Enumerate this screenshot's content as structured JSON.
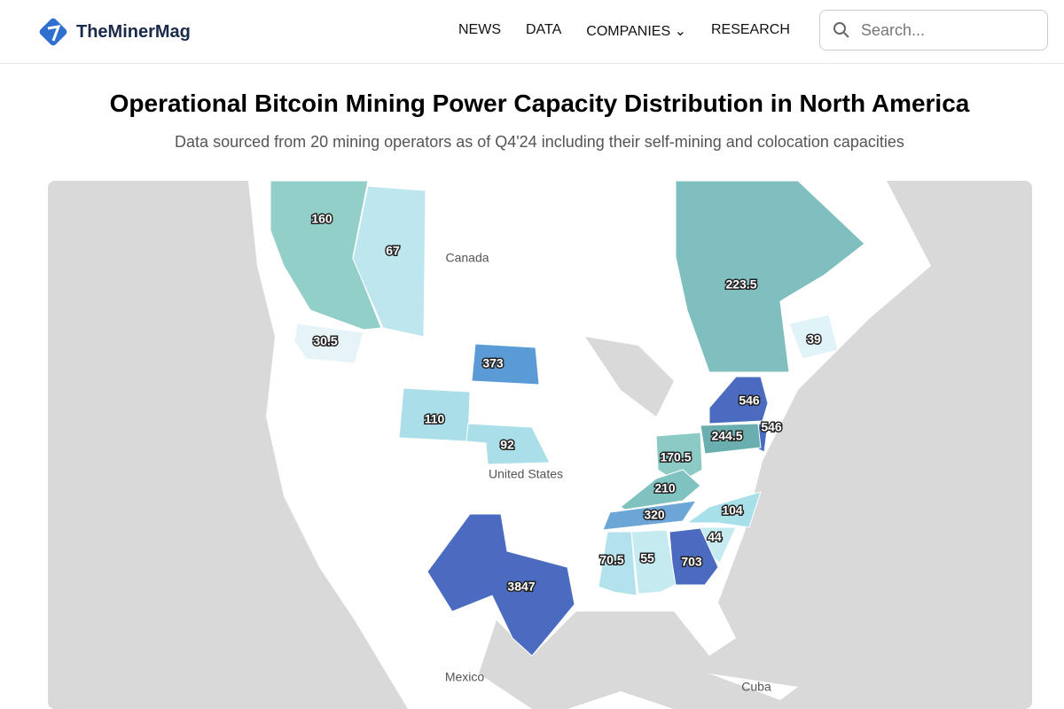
{
  "header": {
    "logo": "TheMinerMag",
    "nav": [
      "NEWS",
      "DATA",
      "COMPANIES",
      "RESEARCH"
    ],
    "search_placeholder": "Search..."
  },
  "title": "Operational Bitcoin Mining Power Capacity Distribution in North America",
  "subtitle": "Data sourced from 20 mining operators as of Q4'24 including their self-mining and colocation capacities",
  "map": {
    "place_labels": [
      "Canada",
      "United States",
      "Mexico",
      "Cuba"
    ],
    "regions": [
      {
        "value": 160,
        "color": "#93cfc9"
      },
      {
        "value": 67,
        "color": "#bde6ef"
      },
      {
        "value": 223.5,
        "color": "#7fbfbf"
      },
      {
        "value": 39,
        "color": "#e0f3f8"
      },
      {
        "value": 30.5,
        "color": "#e6f4f8"
      },
      {
        "value": 373,
        "color": "#5b9bd5"
      },
      {
        "value": 546,
        "color": "#4a6bbf"
      },
      {
        "value": 546,
        "color": "#4a6bbf"
      },
      {
        "value": 110,
        "color": "#aadfea"
      },
      {
        "value": 92,
        "color": "#aadfea"
      },
      {
        "value": 244.5,
        "color": "#6aaeb0"
      },
      {
        "value": 170.5,
        "color": "#8ccac5"
      },
      {
        "value": 210,
        "color": "#7fc2bf"
      },
      {
        "value": 320,
        "color": "#6ca6d6"
      },
      {
        "value": 104,
        "color": "#a8e0ea"
      },
      {
        "value": 44,
        "color": "#c5ebf1"
      },
      {
        "value": 703,
        "color": "#4a6bbf"
      },
      {
        "value": 55,
        "color": "#c5ebf1"
      },
      {
        "value": 70.5,
        "color": "#b4e2ec"
      },
      {
        "value": 3847,
        "color": "#4a6bbf"
      }
    ]
  }
}
